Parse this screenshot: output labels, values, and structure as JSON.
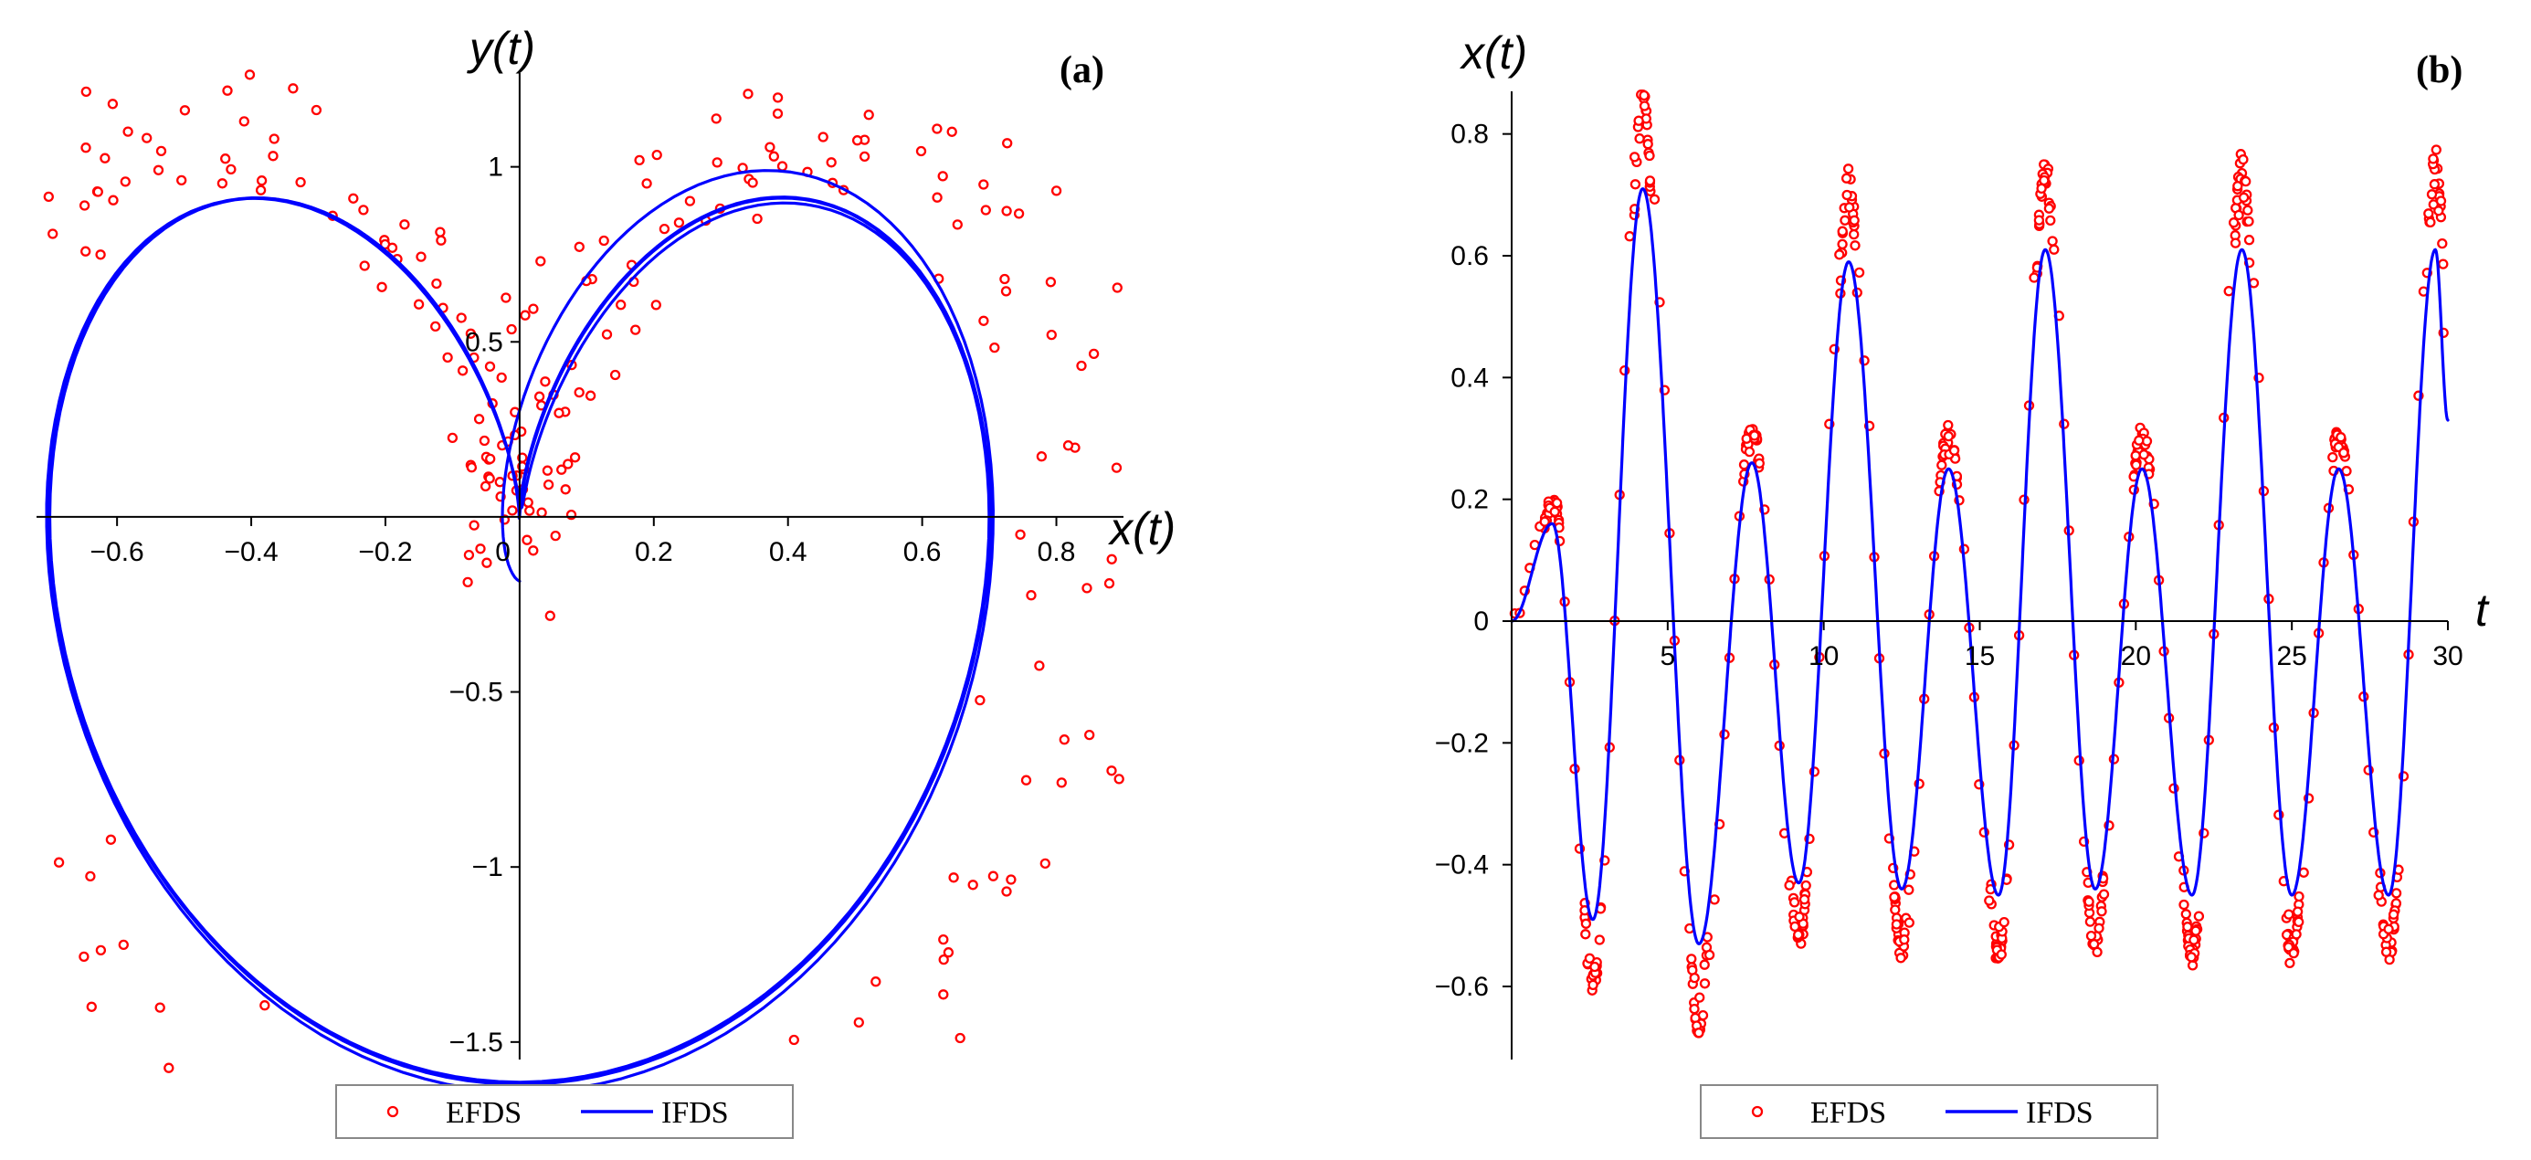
{
  "chart_data": [
    {
      "id": "a",
      "type": "line",
      "panel_label": "(a)",
      "xlabel": "x(t)",
      "ylabel": "y(t)",
      "xlim": [
        -0.72,
        0.9
      ],
      "ylim": [
        -1.55,
        1.32
      ],
      "x_ticks": [
        {
          "value": -0.6,
          "label": "−0.6"
        },
        {
          "value": -0.4,
          "label": "−0.4"
        },
        {
          "value": -0.2,
          "label": "−0.2"
        },
        {
          "value": 0,
          "label": "0"
        },
        {
          "value": 0.2,
          "label": "0.2"
        },
        {
          "value": 0.4,
          "label": "0.4"
        },
        {
          "value": 0.6,
          "label": "0.6"
        },
        {
          "value": 0.8,
          "label": "0.8"
        }
      ],
      "y_ticks": [
        {
          "value": -1.5,
          "label": "−1.5"
        },
        {
          "value": -1,
          "label": "−1"
        },
        {
          "value": -0.5,
          "label": "−0.5"
        },
        {
          "value": 0.5,
          "label": "0.5"
        },
        {
          "value": 1,
          "label": "1"
        }
      ],
      "series": [
        {
          "name": "EFDS",
          "kind": "scatter",
          "color": "#ff0000",
          "model": "phase portrait x(t), y(t) of the explicit scheme (same solution as IFDS plus scheme noise)",
          "t_range": [
            0,
            30
          ],
          "step": 0.1
        },
        {
          "name": "IFDS",
          "kind": "line",
          "color": "#0000ff",
          "model": "x(t) = 0.54*(sin(1.5t)-0.5sin(3t)) - 0.08*exp(-0.45t)*sin(2.3t); y(t) = dx/dt",
          "t_range": [
            0,
            30
          ],
          "step": 0.02
        }
      ],
      "legend": {
        "position": "bottom-center",
        "entries": [
          "EFDS",
          "IFDS"
        ]
      }
    },
    {
      "id": "b",
      "type": "line",
      "panel_label": "(b)",
      "xlabel": "t",
      "ylabel": "x(t)",
      "xlim": [
        0,
        30
      ],
      "ylim": [
        -0.72,
        0.9
      ],
      "x_ticks": [
        {
          "value": 5,
          "label": "5"
        },
        {
          "value": 10,
          "label": "10"
        },
        {
          "value": 15,
          "label": "15"
        },
        {
          "value": 20,
          "label": "20"
        },
        {
          "value": 25,
          "label": "25"
        },
        {
          "value": 30,
          "label": "30"
        }
      ],
      "y_ticks": [
        {
          "value": -0.6,
          "label": "−0.6"
        },
        {
          "value": -0.4,
          "label": "−0.4"
        },
        {
          "value": -0.2,
          "label": "−0.2"
        },
        {
          "value": 0,
          "label": "0"
        },
        {
          "value": 0.2,
          "label": "0.2"
        },
        {
          "value": 0.4,
          "label": "0.4"
        },
        {
          "value": 0.6,
          "label": "0.6"
        },
        {
          "value": 0.8,
          "label": "0.8"
        }
      ],
      "ifds_extrema": [
        {
          "t": 1.3,
          "x": 0.16
        },
        {
          "t": 2.6,
          "x": -0.49
        },
        {
          "t": 4.2,
          "x": 0.71
        },
        {
          "t": 6.0,
          "x": -0.53
        },
        {
          "t": 7.7,
          "x": 0.26
        },
        {
          "t": 9.2,
          "x": -0.43
        },
        {
          "t": 10.8,
          "x": 0.59
        },
        {
          "t": 12.5,
          "x": -0.44
        },
        {
          "t": 14.0,
          "x": 0.25
        },
        {
          "t": 15.6,
          "x": -0.45
        },
        {
          "t": 17.1,
          "x": 0.61
        },
        {
          "t": 18.7,
          "x": -0.44
        },
        {
          "t": 20.2,
          "x": 0.25
        },
        {
          "t": 21.8,
          "x": -0.45
        },
        {
          "t": 23.4,
          "x": 0.61
        },
        {
          "t": 25.0,
          "x": -0.45
        },
        {
          "t": 26.5,
          "x": 0.25
        },
        {
          "t": 28.1,
          "x": -0.45
        },
        {
          "t": 29.6,
          "x": 0.61
        }
      ],
      "ifds_end": {
        "t": 30,
        "x": 0.33
      },
      "series": [
        {
          "name": "EFDS",
          "kind": "scatter",
          "color": "#ff0000",
          "model": "explicit scheme: denser samples near extrema, amplitude about 20% larger than IFDS",
          "t_range": [
            0,
            30
          ]
        },
        {
          "name": "IFDS",
          "kind": "line",
          "color": "#0000ff",
          "t_range": [
            0,
            30
          ]
        }
      ],
      "legend": {
        "position": "bottom-center",
        "entries": [
          "EFDS",
          "IFDS"
        ]
      }
    }
  ]
}
